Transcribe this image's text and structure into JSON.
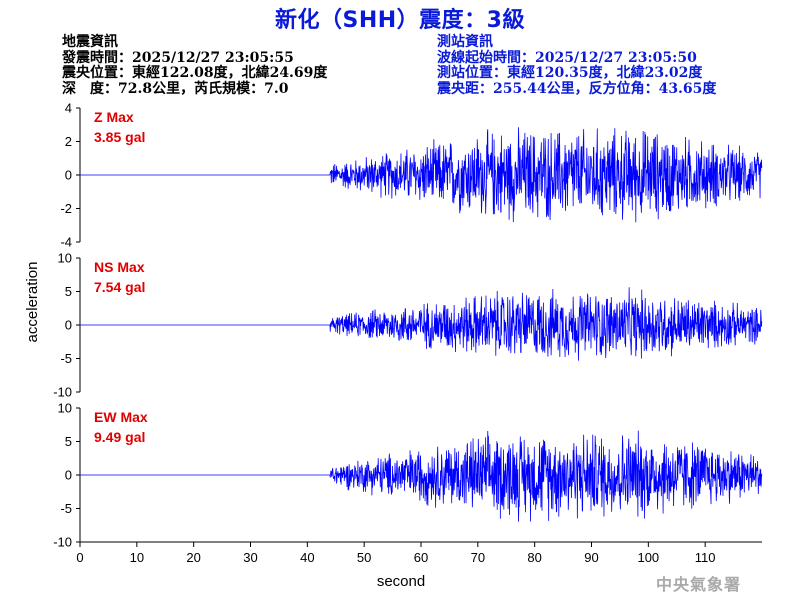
{
  "title": "新化（SHH）震度：3級",
  "quake_info": {
    "heading": "地震資訊",
    "time": "發震時間：2025/12/27 23:05:55",
    "location": "震央位置：東經122.08度，北緯24.69度",
    "depth": "深　度：72.8公里，芮氏規模：7.0"
  },
  "station_info": {
    "heading": "測站資訊",
    "wave_start": "波線起始時間：2025/12/27 23:05:50",
    "location": "測站位置：東經120.35度，北緯23.02度",
    "distance": "震央距：255.44公里，反方位角：43.65度"
  },
  "agency": "中央氣象署",
  "colors": {
    "trace": "#0000ff",
    "title": "#0a1ad8",
    "max_label": "#e00000",
    "axis": "#000000"
  },
  "chart_data": {
    "type": "line",
    "xlabel": "second",
    "ylabel": "acceleration",
    "xlim": [
      0,
      120
    ],
    "xticks": [
      0,
      10,
      20,
      30,
      40,
      50,
      60,
      70,
      80,
      90,
      100,
      110
    ],
    "signal_onset": 44,
    "panels": [
      {
        "name": "Z",
        "max_label": "Z Max",
        "max_value": "3.85 gal",
        "peak": 3.85,
        "ylim": [
          -4,
          4
        ],
        "yticks": [
          -4,
          -2,
          0,
          2,
          4
        ]
      },
      {
        "name": "NS",
        "max_label": "NS Max",
        "max_value": "7.54 gal",
        "peak": 7.54,
        "ylim": [
          -10,
          10
        ],
        "yticks": [
          -10,
          -5,
          0,
          5,
          10
        ]
      },
      {
        "name": "EW",
        "max_label": "EW Max",
        "max_value": "9.49 gal",
        "peak": 9.49,
        "ylim": [
          -10,
          10
        ],
        "yticks": [
          -10,
          -5,
          0,
          5,
          10
        ]
      }
    ]
  }
}
